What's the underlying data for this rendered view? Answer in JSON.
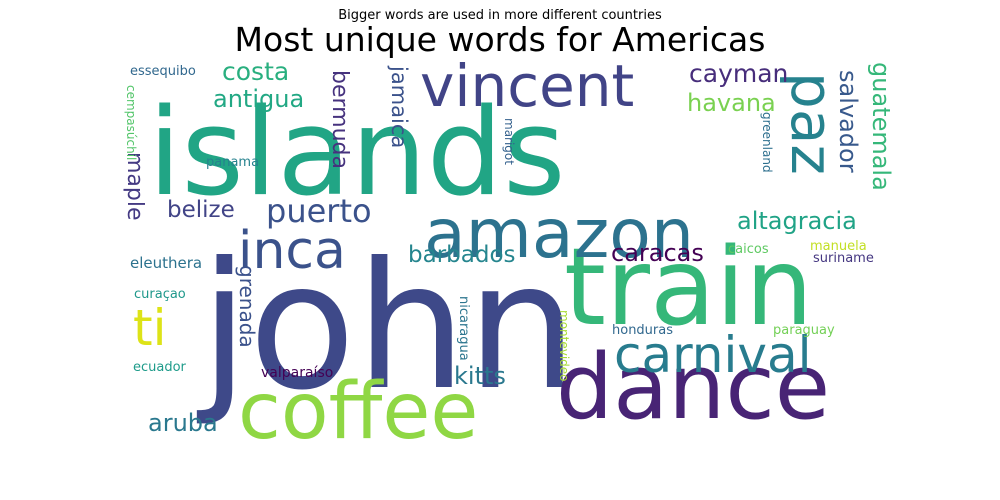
{
  "suptitle": "Bigger words are used in more different countries",
  "title": "Most unique words for Americas",
  "chart_data": {
    "type": "wordcloud",
    "words": [
      {
        "text": "islands",
        "size": 100,
        "color": "#21a585"
      },
      {
        "text": "john",
        "size": 92,
        "color": "#3e4989"
      },
      {
        "text": "train",
        "size": 78,
        "color": "#35b779"
      },
      {
        "text": "dance",
        "size": 74,
        "color": "#482475"
      },
      {
        "text": "coffee",
        "size": 66,
        "color": "#8fd744"
      },
      {
        "text": "amazon",
        "size": 58,
        "color": "#2c728e"
      },
      {
        "text": "vincent",
        "size": 50,
        "color": "#414487"
      },
      {
        "text": "carnival",
        "size": 46,
        "color": "#287c8e"
      },
      {
        "text": "paz",
        "size": 46,
        "color": "#26828e"
      },
      {
        "text": "inca",
        "size": 42,
        "color": "#3b528b"
      },
      {
        "text": "ti",
        "size": 40,
        "color": "#dde318"
      },
      {
        "text": "puerto",
        "size": 30,
        "color": "#3b528b"
      },
      {
        "text": "costa",
        "size": 22,
        "color": "#29af7f"
      },
      {
        "text": "antigua",
        "size": 22,
        "color": "#22a884"
      },
      {
        "text": "cayman",
        "size": 22,
        "color": "#472d7b"
      },
      {
        "text": "havana",
        "size": 22,
        "color": "#7ad151"
      },
      {
        "text": "guatemala",
        "size": 22,
        "color": "#35b779"
      },
      {
        "text": "salvador",
        "size": 22,
        "color": "#38598c"
      },
      {
        "text": "altagracia",
        "size": 22,
        "color": "#20a386"
      },
      {
        "text": "caracas",
        "size": 22,
        "color": "#440154"
      },
      {
        "text": "barbados",
        "size": 22,
        "color": "#25858e"
      },
      {
        "text": "kitts",
        "size": 22,
        "color": "#2a788e"
      },
      {
        "text": "aruba",
        "size": 22,
        "color": "#2a788e"
      },
      {
        "text": "belize",
        "size": 22,
        "color": "#414487"
      },
      {
        "text": "bermuda",
        "size": 20,
        "color": "#46327e"
      },
      {
        "text": "jamaica",
        "size": 20,
        "color": "#3b528b"
      },
      {
        "text": "maple",
        "size": 20,
        "color": "#443a83"
      },
      {
        "text": "grenada",
        "size": 18,
        "color": "#3b528b"
      },
      {
        "text": "eleuthera",
        "size": 15,
        "color": "#2c728e"
      },
      {
        "text": "essequibo",
        "size": 13,
        "color": "#31688e"
      },
      {
        "text": "cempasúchil",
        "size": 12,
        "color": "#52c569"
      },
      {
        "text": "panama",
        "size": 13,
        "color": "#26828e"
      },
      {
        "text": "marigot",
        "size": 12,
        "color": "#34618d"
      },
      {
        "text": "greenland",
        "size": 12,
        "color": "#2e6f8e"
      },
      {
        "text": "caicos",
        "size": 13,
        "color": "#5ec962"
      },
      {
        "text": "manuela",
        "size": 13,
        "color": "#c2df23"
      },
      {
        "text": "suriname",
        "size": 13,
        "color": "#453781"
      },
      {
        "text": "curaçao",
        "size": 13,
        "color": "#1f988b"
      },
      {
        "text": "nicaragua",
        "size": 13,
        "color": "#2b758e"
      },
      {
        "text": "montevideo",
        "size": 12,
        "color": "#a8db34"
      },
      {
        "text": "honduras",
        "size": 13,
        "color": "#31688e"
      },
      {
        "text": "paraguay",
        "size": 13,
        "color": "#73d056"
      },
      {
        "text": "ecuador",
        "size": 13,
        "color": "#1e9b8a"
      },
      {
        "text": "valparaíso",
        "size": 13,
        "color": "#440154"
      }
    ]
  }
}
